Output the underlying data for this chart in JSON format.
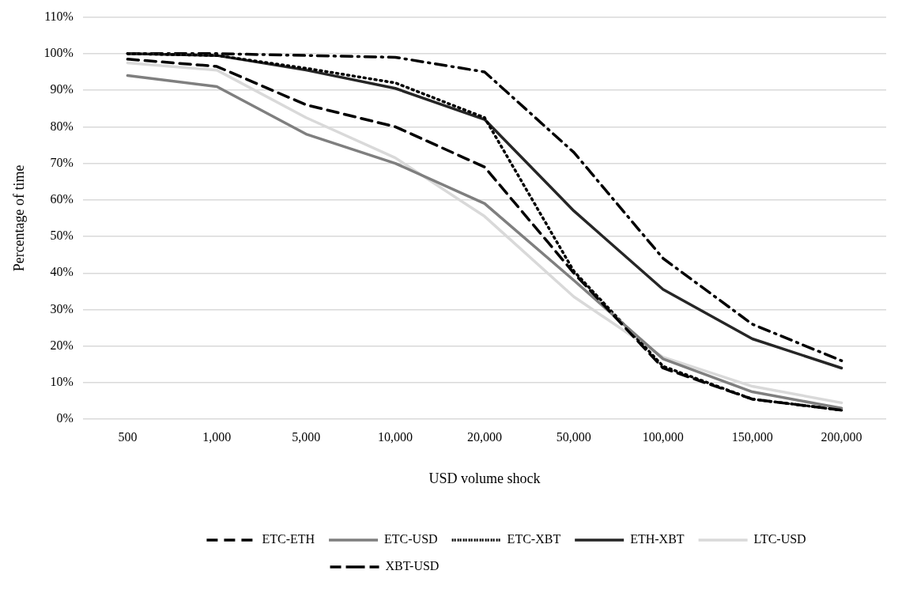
{
  "chart_data": {
    "type": "line",
    "xlabel": "USD volume shock",
    "ylabel": "Percentage of time",
    "categories": [
      "500",
      "1,000",
      "5,000",
      "10,000",
      "20,000",
      "50,000",
      "100,000",
      "150,000",
      "200,000"
    ],
    "ylim": [
      0,
      110
    ],
    "yticks": [
      {
        "value": 0,
        "label": "0%"
      },
      {
        "value": 10,
        "label": "10%"
      },
      {
        "value": 20,
        "label": "20%"
      },
      {
        "value": 30,
        "label": "30%"
      },
      {
        "value": 40,
        "label": "40%"
      },
      {
        "value": 50,
        "label": "50%"
      },
      {
        "value": 60,
        "label": "60%"
      },
      {
        "value": 70,
        "label": "70%"
      },
      {
        "value": 80,
        "label": "80%"
      },
      {
        "value": 90,
        "label": "90%"
      },
      {
        "value": 100,
        "label": "100%"
      },
      {
        "value": 110,
        "label": "110%"
      }
    ],
    "grid": "y",
    "legend": "bottom",
    "marker": "none",
    "series": [
      {
        "name": "ETC-ETH",
        "color": "#000000",
        "line_style": "dashed",
        "values": [
          98.5,
          96.5,
          86,
          80,
          69,
          40,
          14,
          5.5,
          2.5
        ]
      },
      {
        "name": "ETC-USD",
        "color": "#7f7f7f",
        "line_style": "solid",
        "values": [
          94,
          91,
          78,
          70,
          59,
          38,
          16.5,
          7.5,
          3
        ]
      },
      {
        "name": "ETC-XBT",
        "color": "#000000",
        "line_style": "dotted",
        "values": [
          100,
          99.5,
          96,
          92,
          82.5,
          40.5,
          14.5,
          5.5,
          2.5
        ]
      },
      {
        "name": "ETH-XBT",
        "color": "#262626",
        "line_style": "solid",
        "values": [
          100,
          99.5,
          95.5,
          90.5,
          82,
          57,
          35.5,
          22,
          14
        ]
      },
      {
        "name": "LTC-USD",
        "color": "#d9d9d9",
        "line_style": "solid",
        "values": [
          97.5,
          95.5,
          82.5,
          71.5,
          55.5,
          33.5,
          17,
          9,
          4.5
        ]
      },
      {
        "name": "XBT-USD",
        "color": "#000000",
        "line_style": "dashdot",
        "values": [
          100,
          100,
          99.5,
          99,
          95,
          73,
          44,
          26,
          16
        ]
      }
    ]
  }
}
